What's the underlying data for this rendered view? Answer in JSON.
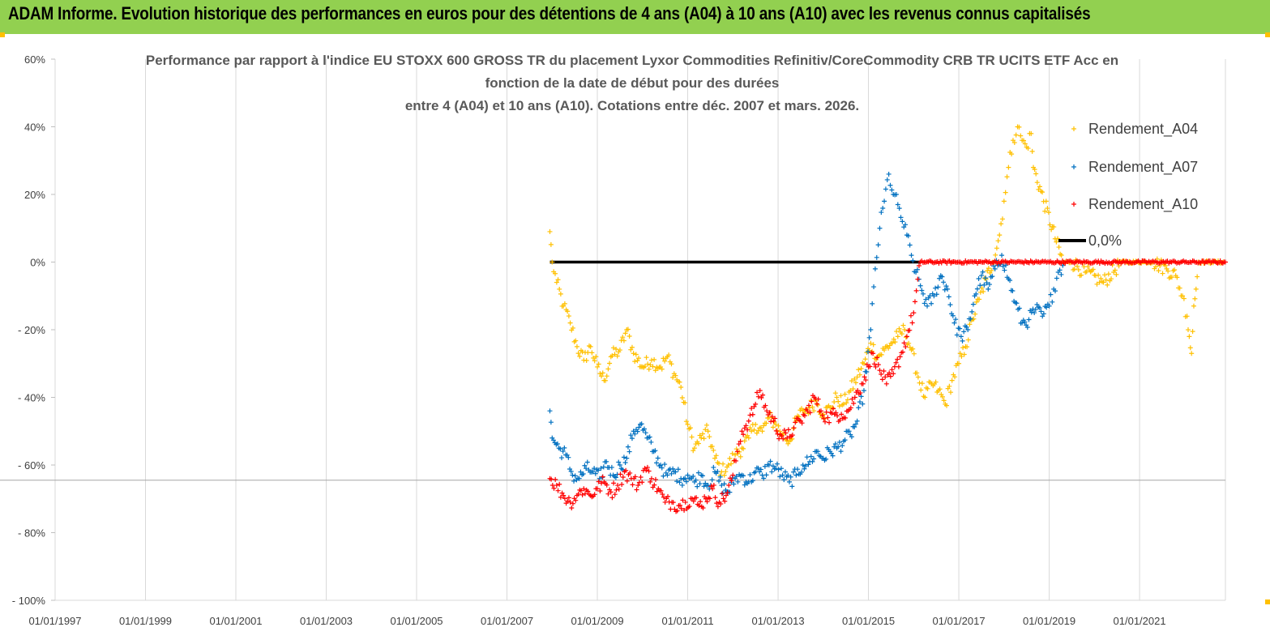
{
  "banner": {
    "title": "ADAM Informe. Evolution historique des performances en euros pour des détentions de 4 ans (A04) à 10 ans (A10) avec les revenus connus capitalisés",
    "color": "#92d050"
  },
  "chart_data": {
    "type": "scatter",
    "title_lines": [
      "Performance par rapport à l'indice EU STOXX 600 GROSS TR  du placement Lyxor Commodities Refinitiv/CoreCommodity CRB TR UCITS ETF Acc en",
      "fonction de la date de début pour des durées",
      "entre 4 (A04) et 10 ans (A10). Cotations entre déc. 2007 et mars. 2026."
    ],
    "xlabel": "",
    "ylabel": "",
    "ylim": [
      -100,
      60
    ],
    "xlim": [
      1997.0,
      2022.9
    ],
    "yticks": [
      {
        "v": 60,
        "label": "60%"
      },
      {
        "v": 40,
        "label": "40%"
      },
      {
        "v": 20,
        "label": "20%"
      },
      {
        "v": 0,
        "label": "0%"
      },
      {
        "v": -20,
        "label": "- 20%"
      },
      {
        "v": -40,
        "label": "- 40%"
      },
      {
        "v": -60,
        "label": "- 60%"
      },
      {
        "v": -80,
        "label": "- 80%"
      },
      {
        "v": -100,
        "label": "- 100%"
      }
    ],
    "xticks": [
      {
        "v": 1997,
        "label": "01/01/1997"
      },
      {
        "v": 1999,
        "label": "01/01/1999"
      },
      {
        "v": 2001,
        "label": "01/01/2001"
      },
      {
        "v": 2003,
        "label": "01/01/2003"
      },
      {
        "v": 2005,
        "label": "01/01/2005"
      },
      {
        "v": 2007,
        "label": "01/01/2007"
      },
      {
        "v": 2009,
        "label": "01/01/2009"
      },
      {
        "v": 2011,
        "label": "01/01/2011"
      },
      {
        "v": 2013,
        "label": "01/01/2013"
      },
      {
        "v": 2015,
        "label": "01/01/2015"
      },
      {
        "v": 2017,
        "label": "01/01/2017"
      },
      {
        "v": 2019,
        "label": "01/01/2019"
      },
      {
        "v": 2021,
        "label": "01/01/2021"
      }
    ],
    "legend_position": "top-right",
    "series": [
      {
        "name": "Rendement_A04",
        "color": "#ffc000",
        "marker": "+",
        "points": [
          [
            2007.95,
            9
          ],
          [
            2008.0,
            0
          ],
          [
            2008.1,
            -6
          ],
          [
            2008.25,
            -13
          ],
          [
            2008.4,
            -18
          ],
          [
            2008.55,
            -25
          ],
          [
            2008.7,
            -29
          ],
          [
            2008.85,
            -25
          ],
          [
            2009.0,
            -31
          ],
          [
            2009.15,
            -35
          ],
          [
            2009.3,
            -28
          ],
          [
            2009.5,
            -26
          ],
          [
            2009.65,
            -20
          ],
          [
            2009.8,
            -27
          ],
          [
            2010.0,
            -31
          ],
          [
            2010.2,
            -29
          ],
          [
            2010.4,
            -31
          ],
          [
            2010.55,
            -28
          ],
          [
            2010.7,
            -33
          ],
          [
            2010.85,
            -37
          ],
          [
            2011.0,
            -48
          ],
          [
            2011.15,
            -55
          ],
          [
            2011.3,
            -52
          ],
          [
            2011.45,
            -50
          ],
          [
            2011.6,
            -58
          ],
          [
            2011.75,
            -62
          ],
          [
            2011.9,
            -60
          ],
          [
            2012.05,
            -57
          ],
          [
            2012.2,
            -55
          ],
          [
            2012.35,
            -52
          ],
          [
            2012.5,
            -48
          ],
          [
            2012.65,
            -50
          ],
          [
            2012.8,
            -46
          ],
          [
            2012.95,
            -48
          ],
          [
            2013.1,
            -51
          ],
          [
            2013.25,
            -53
          ],
          [
            2013.4,
            -47
          ],
          [
            2013.55,
            -44
          ],
          [
            2013.7,
            -43
          ],
          [
            2013.85,
            -41
          ],
          [
            2014.0,
            -45
          ],
          [
            2014.15,
            -43
          ],
          [
            2014.3,
            -40
          ],
          [
            2014.45,
            -42
          ],
          [
            2014.6,
            -38
          ],
          [
            2014.75,
            -34
          ],
          [
            2014.9,
            -30
          ],
          [
            2015.05,
            -24
          ],
          [
            2015.2,
            -28
          ],
          [
            2015.35,
            -26
          ],
          [
            2015.5,
            -24
          ],
          [
            2015.65,
            -22
          ],
          [
            2015.8,
            -20
          ],
          [
            2015.95,
            -26
          ],
          [
            2016.1,
            -34
          ],
          [
            2016.25,
            -40
          ],
          [
            2016.4,
            -36
          ],
          [
            2016.55,
            -38
          ],
          [
            2016.7,
            -42
          ],
          [
            2016.85,
            -35
          ],
          [
            2017.0,
            -30
          ],
          [
            2017.15,
            -25
          ],
          [
            2017.3,
            -17
          ],
          [
            2017.45,
            -11
          ],
          [
            2017.6,
            -5
          ],
          [
            2017.75,
            0
          ],
          [
            2017.9,
            8
          ],
          [
            2018.0,
            18
          ],
          [
            2018.1,
            28
          ],
          [
            2018.2,
            36
          ],
          [
            2018.3,
            40
          ],
          [
            2018.4,
            36
          ],
          [
            2018.5,
            34
          ],
          [
            2018.6,
            38
          ],
          [
            2018.65,
            28
          ],
          [
            2019.3,
            0
          ],
          [
            2019.5,
            0
          ],
          [
            2019.8,
            -3
          ],
          [
            2020.2,
            -6
          ],
          [
            2020.6,
            0
          ],
          [
            2021.3,
            0
          ],
          [
            2021.6,
            -2
          ],
          [
            2021.8,
            -4
          ],
          [
            2021.95,
            -10
          ],
          [
            2022.05,
            -16
          ],
          [
            2022.1,
            -22
          ],
          [
            2022.15,
            -27
          ],
          [
            2022.2,
            -13
          ],
          [
            2022.25,
            -8
          ],
          [
            2022.3,
            0
          ],
          [
            2022.6,
            0
          ],
          [
            2022.85,
            0
          ]
        ]
      },
      {
        "name": "Rendement_A07",
        "color": "#0070c0",
        "marker": "+",
        "points": [
          [
            2007.95,
            -44
          ],
          [
            2008.0,
            -52
          ],
          [
            2008.15,
            -55
          ],
          [
            2008.3,
            -57
          ],
          [
            2008.45,
            -63
          ],
          [
            2008.6,
            -64
          ],
          [
            2008.75,
            -61
          ],
          [
            2008.9,
            -62
          ],
          [
            2009.05,
            -64
          ],
          [
            2009.2,
            -59
          ],
          [
            2009.35,
            -63
          ],
          [
            2009.5,
            -60
          ],
          [
            2009.65,
            -58
          ],
          [
            2009.8,
            -50
          ],
          [
            2009.95,
            -48
          ],
          [
            2010.1,
            -52
          ],
          [
            2010.25,
            -56
          ],
          [
            2010.4,
            -60
          ],
          [
            2010.55,
            -63
          ],
          [
            2010.7,
            -62
          ],
          [
            2010.85,
            -64
          ],
          [
            2011.0,
            -63
          ],
          [
            2011.15,
            -65
          ],
          [
            2011.3,
            -63
          ],
          [
            2011.45,
            -66
          ],
          [
            2011.6,
            -62
          ],
          [
            2011.75,
            -66
          ],
          [
            2011.9,
            -68
          ],
          [
            2012.05,
            -64
          ],
          [
            2012.2,
            -63
          ],
          [
            2012.35,
            -65
          ],
          [
            2012.5,
            -62
          ],
          [
            2012.65,
            -63
          ],
          [
            2012.8,
            -60
          ],
          [
            2012.95,
            -61
          ],
          [
            2013.1,
            -63
          ],
          [
            2013.25,
            -65
          ],
          [
            2013.4,
            -63
          ],
          [
            2013.55,
            -60
          ],
          [
            2013.7,
            -59
          ],
          [
            2013.85,
            -56
          ],
          [
            2014.0,
            -58
          ],
          [
            2014.15,
            -56
          ],
          [
            2014.3,
            -55
          ],
          [
            2014.45,
            -53
          ],
          [
            2014.6,
            -51
          ],
          [
            2014.75,
            -47
          ],
          [
            2014.9,
            -38
          ],
          [
            2015.05,
            -20
          ],
          [
            2015.15,
            -2
          ],
          [
            2015.25,
            10
          ],
          [
            2015.35,
            18
          ],
          [
            2015.45,
            26
          ],
          [
            2015.55,
            20
          ],
          [
            2015.65,
            17
          ],
          [
            2015.75,
            12
          ],
          [
            2015.85,
            8
          ],
          [
            2015.95,
            2
          ],
          [
            2016.05,
            -3
          ],
          [
            2016.15,
            -7
          ],
          [
            2016.3,
            -13
          ],
          [
            2016.45,
            -10
          ],
          [
            2016.6,
            -4
          ],
          [
            2016.75,
            -8
          ],
          [
            2016.9,
            -18
          ],
          [
            2017.05,
            -22
          ],
          [
            2017.2,
            -20
          ],
          [
            2017.35,
            -10
          ],
          [
            2017.5,
            -4
          ],
          [
            2017.65,
            -8
          ],
          [
            2017.8,
            -2
          ],
          [
            2017.95,
            2
          ],
          [
            2018.1,
            -5
          ],
          [
            2018.25,
            -12
          ],
          [
            2018.4,
            -18
          ],
          [
            2018.55,
            -17
          ],
          [
            2018.7,
            -14
          ],
          [
            2018.85,
            -16
          ],
          [
            2019.0,
            -13
          ],
          [
            2019.1,
            -8
          ],
          [
            2019.2,
            -3
          ],
          [
            2019.3,
            -1
          ]
        ]
      },
      {
        "name": "Rendement_A10",
        "color": "#ff0000",
        "marker": "+",
        "points": [
          [
            2007.95,
            -64
          ],
          [
            2008.1,
            -66
          ],
          [
            2008.25,
            -69
          ],
          [
            2008.4,
            -71
          ],
          [
            2008.55,
            -69
          ],
          [
            2008.7,
            -67
          ],
          [
            2008.85,
            -69
          ],
          [
            2009.0,
            -67
          ],
          [
            2009.15,
            -65
          ],
          [
            2009.3,
            -68
          ],
          [
            2009.45,
            -66
          ],
          [
            2009.6,
            -62
          ],
          [
            2009.75,
            -64
          ],
          [
            2009.9,
            -66
          ],
          [
            2010.05,
            -61
          ],
          [
            2010.2,
            -64
          ],
          [
            2010.35,
            -67
          ],
          [
            2010.5,
            -71
          ],
          [
            2010.65,
            -71
          ],
          [
            2010.8,
            -72
          ],
          [
            2010.95,
            -71
          ],
          [
            2011.1,
            -70
          ],
          [
            2011.25,
            -72
          ],
          [
            2011.4,
            -70
          ],
          [
            2011.55,
            -67
          ],
          [
            2011.7,
            -71
          ],
          [
            2011.85,
            -69
          ],
          [
            2012.0,
            -63
          ],
          [
            2012.1,
            -56
          ],
          [
            2012.2,
            -50
          ],
          [
            2012.35,
            -47
          ],
          [
            2012.5,
            -42
          ],
          [
            2012.6,
            -38
          ],
          [
            2012.75,
            -44
          ],
          [
            2012.9,
            -47
          ],
          [
            2013.05,
            -51
          ],
          [
            2013.2,
            -52
          ],
          [
            2013.35,
            -49
          ],
          [
            2013.5,
            -47
          ],
          [
            2013.65,
            -44
          ],
          [
            2013.8,
            -40
          ],
          [
            2013.95,
            -44
          ],
          [
            2014.1,
            -46
          ],
          [
            2014.25,
            -45
          ],
          [
            2014.4,
            -45
          ],
          [
            2014.55,
            -44
          ],
          [
            2014.7,
            -40
          ],
          [
            2014.85,
            -36
          ],
          [
            2015.0,
            -31
          ],
          [
            2015.1,
            -27
          ],
          [
            2015.25,
            -32
          ],
          [
            2015.4,
            -36
          ],
          [
            2015.55,
            -33
          ],
          [
            2015.7,
            -28
          ],
          [
            2015.85,
            -22
          ],
          [
            2016.0,
            -15
          ],
          [
            2016.15,
            0
          ],
          [
            2016.5,
            0
          ],
          [
            2017.0,
            0
          ],
          [
            2017.5,
            0
          ],
          [
            2018.0,
            0
          ],
          [
            2018.5,
            0
          ],
          [
            2019.0,
            0
          ],
          [
            2019.5,
            0
          ],
          [
            2020.0,
            0
          ],
          [
            2020.5,
            0
          ],
          [
            2021.0,
            0
          ],
          [
            2021.5,
            0
          ],
          [
            2022.0,
            0
          ],
          [
            2022.5,
            0
          ],
          [
            2022.9,
            0
          ]
        ]
      }
    ],
    "reference_line": {
      "name": "0,0%",
      "color": "#000000",
      "y": 0,
      "x_range": [
        2007.95,
        2016.15
      ]
    },
    "legend_labels": [
      "Rendement_A04",
      "Rendement_A07",
      "Rendement_A10",
      "0,0%"
    ]
  }
}
